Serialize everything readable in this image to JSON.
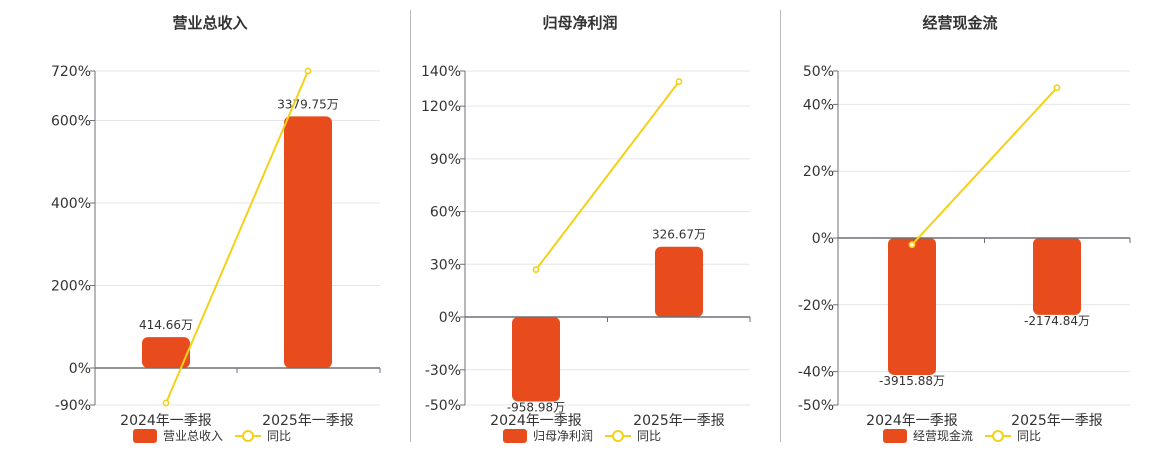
{
  "chart_data": [
    {
      "type": "bar",
      "title": "营业总收入",
      "categories": [
        "2024年一季报",
        "2025年一季报"
      ],
      "y_ticks": [
        "720%",
        "600%",
        "400%",
        "200%",
        "0%",
        "-90%"
      ],
      "ylim": [
        -90,
        720
      ],
      "series": [
        {
          "name": "营业总收入",
          "kind": "bar",
          "values": [
            75,
            610
          ],
          "labels": [
            "414.66万",
            "3379.75万"
          ],
          "color": "#e84c1c"
        },
        {
          "name": "同比",
          "kind": "line",
          "values": [
            -85,
            720
          ],
          "color": "#f2d218"
        }
      ],
      "grid": true,
      "legend": "bottom"
    },
    {
      "type": "bar",
      "title": "归母净利润",
      "categories": [
        "2024年一季报",
        "2025年一季报"
      ],
      "y_ticks": [
        "140%",
        "120%",
        "90%",
        "60%",
        "30%",
        "0%",
        "-30%",
        "-50%"
      ],
      "ylim": [
        -50,
        140
      ],
      "series": [
        {
          "name": "归母净利润",
          "kind": "bar",
          "values": [
            -48,
            40
          ],
          "labels": [
            "-958.98万",
            "326.67万"
          ],
          "color": "#e84c1c"
        },
        {
          "name": "同比",
          "kind": "line",
          "values": [
            27,
            134
          ],
          "color": "#f2d218"
        }
      ],
      "grid": true,
      "legend": "bottom"
    },
    {
      "type": "bar",
      "title": "经营现金流",
      "categories": [
        "2024年一季报",
        "2025年一季报"
      ],
      "y_ticks": [
        "50%",
        "40%",
        "20%",
        "0%",
        "-20%",
        "-40%",
        "-50%"
      ],
      "ylim": [
        -50,
        50
      ],
      "series": [
        {
          "name": "经营现金流",
          "kind": "bar",
          "values": [
            -41,
            -23
          ],
          "labels": [
            "-3915.88万",
            "-2174.84万"
          ],
          "color": "#e84c1c"
        },
        {
          "name": "同比",
          "kind": "line",
          "values": [
            -2,
            45
          ],
          "color": "#f2d218"
        }
      ],
      "grid": true,
      "legend": "bottom"
    }
  ]
}
